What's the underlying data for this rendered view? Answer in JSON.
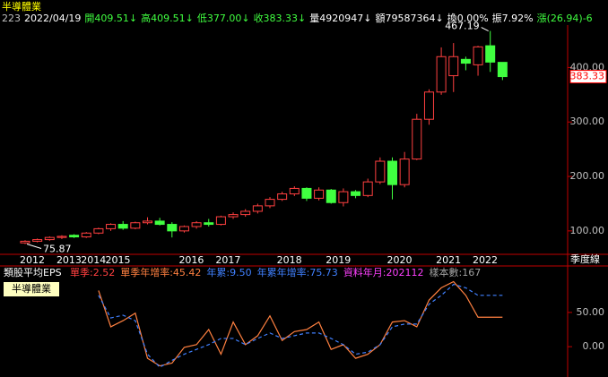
{
  "header": {
    "title": "半導體業",
    "info": [
      {
        "text": "223",
        "color": "#c0c0c0"
      },
      {
        "text": "2022/04/19",
        "color": "#ffffff"
      },
      {
        "text": "開409.51↓",
        "color": "#40ff40"
      },
      {
        "text": "高409.51↓",
        "color": "#40ff40"
      },
      {
        "text": "低377.00↓",
        "color": "#40ff40"
      },
      {
        "text": "收383.33↓",
        "color": "#40ff40"
      },
      {
        "text": "量4920947↓",
        "color": "#ffffff"
      },
      {
        "text": "額79587364↓",
        "color": "#ffffff"
      },
      {
        "text": "換0.00%",
        "color": "#ffffff"
      },
      {
        "text": "振7.92%",
        "color": "#ffffff"
      },
      {
        "text": "漲(26.94)-6",
        "color": "#40ff40"
      }
    ]
  },
  "chart_data": [
    {
      "type": "candlestick",
      "period_label": "季度線",
      "categories": [
        "2012",
        null,
        null,
        "2013",
        null,
        "2014",
        null,
        "2015",
        null,
        null,
        null,
        null,
        null,
        "2016",
        null,
        null,
        "2017",
        null,
        null,
        null,
        null,
        "2018",
        null,
        null,
        null,
        "2019",
        null,
        null,
        null,
        null,
        "2020",
        null,
        null,
        null,
        "2021",
        null,
        null,
        "2022",
        null,
        null
      ],
      "open": [
        78,
        81,
        84,
        88,
        92,
        89,
        96,
        104,
        112,
        105,
        115,
        118,
        112,
        100,
        108,
        115,
        112,
        126,
        130,
        136,
        146,
        158,
        168,
        178,
        160,
        175,
        152,
        172,
        165,
        190,
        228,
        185,
        232,
        305,
        355,
        385,
        415,
        405,
        440,
        409.51
      ],
      "high": [
        83,
        86,
        90,
        92,
        94,
        98,
        106,
        114,
        118,
        117,
        125,
        124,
        116,
        110,
        118,
        122,
        128,
        134,
        140,
        150,
        162,
        172,
        182,
        180,
        180,
        177,
        178,
        175,
        196,
        235,
        235,
        245,
        315,
        360,
        437,
        445,
        420,
        440,
        467.19,
        409.51
      ],
      "low": [
        75.87,
        79,
        82,
        85,
        87,
        87,
        94,
        100,
        102,
        103,
        112,
        110,
        88,
        97,
        104,
        108,
        110,
        122,
        126,
        132,
        142,
        155,
        164,
        155,
        156,
        150,
        145,
        160,
        162,
        186,
        158,
        180,
        230,
        295,
        350,
        355,
        395,
        385,
        392,
        377
      ],
      "close": [
        81,
        84,
        88,
        90,
        89,
        96,
        104,
        112,
        105,
        115,
        118,
        112,
        100,
        108,
        115,
        112,
        126,
        130,
        136,
        146,
        158,
        168,
        178,
        160,
        175,
        152,
        172,
        165,
        190,
        228,
        185,
        232,
        305,
        355,
        420,
        420,
        408,
        438,
        410,
        383.33
      ],
      "up_color": "#ff4040",
      "down_color": "#40ff40",
      "ylim": [
        57,
        478
      ],
      "yticks": [
        {
          "value": 100,
          "label": "100.00"
        },
        {
          "value": 200,
          "label": "200.00"
        },
        {
          "value": 300,
          "label": "300.00"
        },
        {
          "value": 400,
          "label": "400.00"
        }
      ]
    },
    {
      "type": "line",
      "title": "類股平均EPS",
      "stock_label": "半導體業",
      "legend": [
        {
          "text": "單季:2.52",
          "color": "#ff4040"
        },
        {
          "text": "單季年增率:45.42",
          "color": "#ff8040"
        },
        {
          "text": "年累:9.50",
          "color": "#4080ff"
        },
        {
          "text": "年累年增率:75.73",
          "color": "#4080ff"
        },
        {
          "text": "資料年月:202112",
          "color": "#ff40ff"
        },
        {
          "text": "樣本數:167",
          "color": "#a0a0a0"
        }
      ],
      "series": [
        {
          "color": "#ff8040",
          "dash": false,
          "values": [
            null,
            null,
            null,
            null,
            null,
            null,
            82,
            29,
            38,
            49,
            -17,
            -28,
            -24,
            -1,
            3,
            25,
            -11,
            36,
            3,
            16,
            45,
            9,
            22,
            25,
            36,
            -4,
            3,
            -17,
            -11,
            3,
            36,
            38,
            29,
            68,
            86,
            95,
            75,
            43,
            43,
            43
          ]
        },
        {
          "color": "#4080ff",
          "dash": true,
          "values": [
            null,
            null,
            null,
            null,
            null,
            null,
            75,
            42,
            46,
            38,
            -11,
            -30,
            -20,
            -11,
            -4,
            3,
            12,
            12,
            3,
            12,
            20,
            12,
            16,
            20,
            20,
            12,
            3,
            -11,
            -8,
            3,
            29,
            33,
            33,
            62,
            75,
            91,
            86,
            75,
            75,
            75
          ]
        }
      ],
      "ylim": [
        -43,
        114
      ],
      "yticks": [
        {
          "value": 0,
          "label": "0.00"
        },
        {
          "value": 50,
          "label": "50.00"
        }
      ]
    }
  ]
}
